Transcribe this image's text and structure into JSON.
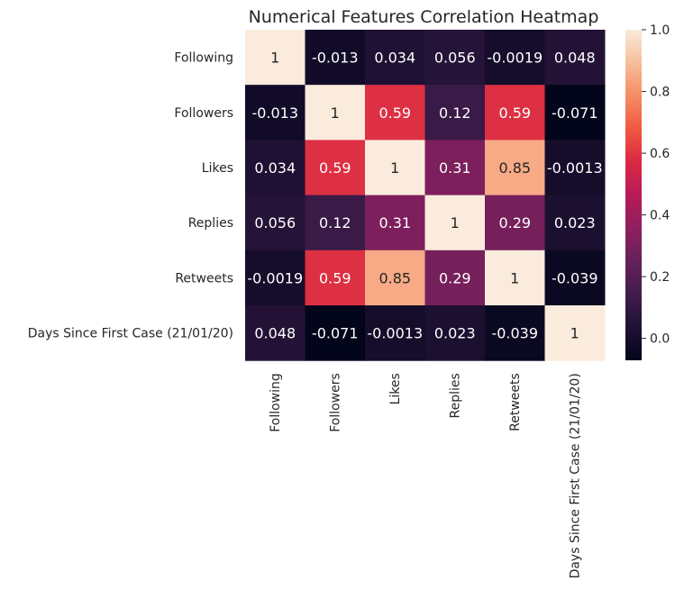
{
  "chart_data": {
    "type": "heatmap",
    "title": "Numerical Features Correlation Heatmap",
    "xlabel": "",
    "ylabel": "",
    "row_labels": [
      "Following",
      "Followers",
      "Likes",
      "Replies",
      "Retweets",
      "Days Since First Case (21/01/20)"
    ],
    "col_labels": [
      "Following",
      "Followers",
      "Likes",
      "Replies",
      "Retweets",
      "Days Since First Case (21/01/20)"
    ],
    "values": [
      [
        1,
        -0.013,
        0.034,
        0.056,
        -0.0019,
        0.048
      ],
      [
        -0.013,
        1,
        0.59,
        0.12,
        0.59,
        -0.071
      ],
      [
        0.034,
        0.59,
        1,
        0.31,
        0.85,
        -0.0013
      ],
      [
        0.056,
        0.12,
        0.31,
        1,
        0.29,
        0.023
      ],
      [
        -0.0019,
        0.59,
        0.85,
        0.29,
        1,
        -0.039
      ],
      [
        0.048,
        -0.071,
        -0.0013,
        0.023,
        -0.039,
        1
      ]
    ],
    "annotations": [
      [
        "1",
        "-0.013",
        "0.034",
        "0.056",
        "-0.0019",
        "0.048"
      ],
      [
        "-0.013",
        "1",
        "0.59",
        "0.12",
        "0.59",
        "-0.071"
      ],
      [
        "0.034",
        "0.59",
        "1",
        "0.31",
        "0.85",
        "-0.0013"
      ],
      [
        "0.056",
        "0.12",
        "0.31",
        "1",
        "0.29",
        "0.023"
      ],
      [
        "-0.0019",
        "0.59",
        "0.85",
        "0.29",
        "1",
        "-0.039"
      ],
      [
        "0.048",
        "-0.071",
        "-0.0013",
        "0.023",
        "-0.039",
        "1"
      ]
    ],
    "colormap": "rocket",
    "colorbar": {
      "range": [
        -0.071,
        1.0
      ],
      "ticks": [
        0.0,
        0.2,
        0.4,
        0.6,
        0.8,
        1.0
      ],
      "tick_labels": [
        "0.0",
        "0.2",
        "0.4",
        "0.6",
        "0.8",
        "1.0"
      ]
    },
    "grid": false,
    "legend": "colorbar-right"
  }
}
